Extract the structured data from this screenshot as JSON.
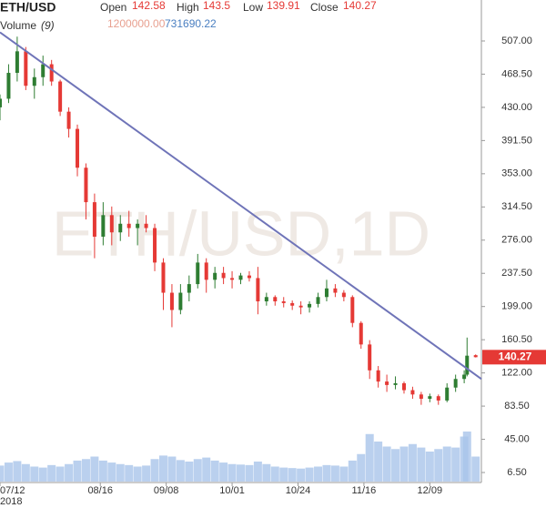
{
  "chart_data": {
    "type": "candlestick",
    "title": "ETH/USD",
    "watermark": "ETH/USD,1D",
    "ohlc_labels": [
      "Open",
      "High",
      "Low",
      "Close"
    ],
    "volume_label": "Volume",
    "volume_param": "(9)",
    "volume_values": [
      "1200000.00",
      "731690.22"
    ],
    "x": [
      0,
      3,
      6,
      9,
      12,
      15,
      18,
      21,
      24,
      27,
      30,
      33,
      36,
      39,
      42,
      45,
      48,
      51,
      54,
      57,
      60,
      63,
      66,
      69,
      72,
      75,
      78,
      81,
      84,
      87,
      90,
      93,
      96,
      99,
      102,
      105,
      108,
      111,
      114,
      117,
      120,
      123,
      126,
      129,
      132,
      135,
      138,
      141,
      144,
      147,
      150,
      153,
      156,
      159,
      162,
      163,
      166
    ],
    "open": [
      430,
      440,
      470,
      495,
      455,
      465,
      480,
      460,
      425,
      405,
      360,
      320,
      280,
      305,
      285,
      295,
      290,
      295,
      290,
      250,
      215,
      195,
      215,
      225,
      250,
      230,
      238,
      232,
      230,
      235,
      232,
      205,
      210,
      205,
      203,
      200,
      198,
      202,
      210,
      220,
      215,
      210,
      180,
      155,
      125,
      112,
      108,
      110,
      102,
      97,
      92,
      95,
      90,
      105,
      115,
      120,
      142.58
    ],
    "high": [
      445,
      480,
      512,
      500,
      475,
      490,
      485,
      462,
      430,
      410,
      365,
      330,
      320,
      315,
      305,
      310,
      300,
      305,
      295,
      255,
      225,
      225,
      235,
      260,
      255,
      245,
      245,
      240,
      238,
      240,
      245,
      215,
      212,
      210,
      206,
      205,
      205,
      215,
      230,
      225,
      218,
      212,
      182,
      160,
      130,
      120,
      118,
      112,
      106,
      100,
      98,
      97,
      110,
      120,
      125,
      163,
      143.5
    ],
    "low": [
      415,
      435,
      460,
      450,
      440,
      455,
      455,
      420,
      395,
      350,
      300,
      255,
      270,
      270,
      275,
      280,
      270,
      285,
      240,
      195,
      175,
      190,
      205,
      220,
      215,
      220,
      225,
      220,
      225,
      228,
      190,
      200,
      200,
      198,
      195,
      190,
      192,
      198,
      205,
      210,
      205,
      175,
      150,
      115,
      105,
      100,
      103,
      98,
      92,
      85,
      88,
      85,
      88,
      100,
      110,
      118,
      139.91
    ],
    "close": [
      440,
      470,
      495,
      455,
      465,
      480,
      460,
      425,
      405,
      360,
      320,
      280,
      305,
      285,
      295,
      290,
      295,
      290,
      250,
      215,
      195,
      215,
      225,
      250,
      230,
      238,
      232,
      230,
      235,
      232,
      205,
      210,
      205,
      203,
      200,
      198,
      202,
      210,
      220,
      215,
      210,
      180,
      155,
      125,
      112,
      108,
      110,
      102,
      97,
      92,
      95,
      90,
      105,
      115,
      120,
      142,
      140.27
    ],
    "volume": [
      320000,
      380000,
      410000,
      350000,
      300000,
      280000,
      330000,
      300000,
      350000,
      420000,
      450000,
      500000,
      420000,
      380000,
      350000,
      330000,
      300000,
      320000,
      450000,
      520000,
      500000,
      430000,
      400000,
      450000,
      480000,
      420000,
      380000,
      350000,
      340000,
      330000,
      400000,
      350000,
      300000,
      280000,
      270000,
      260000,
      280000,
      300000,
      330000,
      320000,
      300000,
      420000,
      550000,
      950000,
      800000,
      700000,
      650000,
      700000,
      750000,
      680000,
      600000,
      650000,
      700000,
      680000,
      900000,
      1000000,
      500000
    ],
    "up_color": "#2e7d32",
    "down_color": "#e53935",
    "volume_color": "#a9c4ea",
    "trend_color": "#6f74b8",
    "trendline": {
      "x": [
        0,
        168
      ],
      "y": [
        517,
        115
      ]
    },
    "xlim": [
      0,
      168
    ],
    "ylim": [
      -5.1,
      554.5
    ],
    "xticks": [
      {
        "value": 0,
        "label": "07/12"
      },
      {
        "value": 35,
        "label": "08/16"
      },
      {
        "value": 58,
        "label": "09/08"
      },
      {
        "value": 81,
        "label": "10/01"
      },
      {
        "value": 104,
        "label": "10/24"
      },
      {
        "value": 127,
        "label": "11/16"
      },
      {
        "value": 150,
        "label": "12/09"
      }
    ],
    "year_label": "2018",
    "yticks": [
      {
        "value": 507,
        "label": "507.00"
      },
      {
        "value": 468.5,
        "label": "468.50"
      },
      {
        "value": 430,
        "label": "430.00"
      },
      {
        "value": 391.5,
        "label": "391.50"
      },
      {
        "value": 353,
        "label": "353.00"
      },
      {
        "value": 314.5,
        "label": "314.50"
      },
      {
        "value": 276,
        "label": "276.00"
      },
      {
        "value": 237.5,
        "label": "237.50"
      },
      {
        "value": 199,
        "label": "199.00"
      },
      {
        "value": 160.5,
        "label": "160.50"
      },
      {
        "value": 122,
        "label": "122.00"
      },
      {
        "value": 83.5,
        "label": "83.50"
      },
      {
        "value": 45,
        "label": "45.00"
      },
      {
        "value": 6.5,
        "label": "6.50"
      }
    ]
  }
}
